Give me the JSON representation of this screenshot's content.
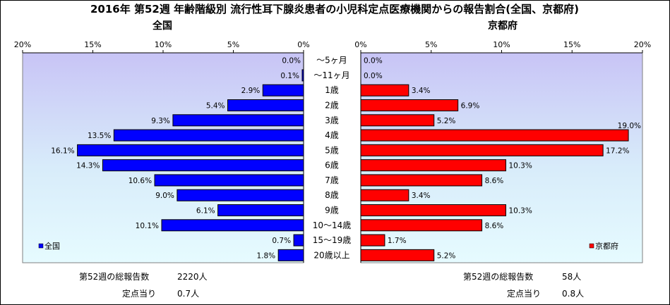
{
  "title": "2016年 第52週 年齢階級別 流行性耳下腺炎患者の小児科定点医療機関からの報告割合(全国、京都府)",
  "chart_data": [
    {
      "type": "bar",
      "orientation": "horizontal",
      "title": "全国",
      "direction": "right-to-left",
      "categories": [
        "～5ヶ月",
        "～11ヶ月",
        "1歳",
        "2歳",
        "3歳",
        "4歳",
        "5歳",
        "6歳",
        "7歳",
        "8歳",
        "9歳",
        "10～14歳",
        "15～19歳",
        "20歳以上"
      ],
      "series": [
        {
          "name": "全国",
          "color": "#0000ff",
          "values": [
            0.0,
            0.1,
            2.9,
            5.4,
            9.3,
            13.5,
            16.1,
            14.3,
            10.6,
            9.0,
            6.1,
            10.1,
            0.7,
            1.8
          ],
          "labels": [
            "0.0%",
            "0.1%",
            "2.9%",
            "5.4%",
            "9.3%",
            "13.5%",
            "16.1%",
            "14.3%",
            "10.6%",
            "9.0%",
            "6.1%",
            "10.1%",
            "0.7%",
            "1.8%"
          ]
        }
      ],
      "xlim": [
        0,
        20
      ],
      "ticks": [
        20,
        15,
        10,
        5,
        0
      ],
      "tick_labels": [
        "20%",
        "15%",
        "10%",
        "5%",
        "0%"
      ],
      "legend_position": "bottom-left",
      "grid": false,
      "background": "gradient lavender to light cyan"
    },
    {
      "type": "bar",
      "orientation": "horizontal",
      "title": "京都府",
      "direction": "left-to-right",
      "categories": [
        "～5ヶ月",
        "～11ヶ月",
        "1歳",
        "2歳",
        "3歳",
        "4歳",
        "5歳",
        "6歳",
        "7歳",
        "8歳",
        "9歳",
        "10～14歳",
        "15～19歳",
        "20歳以上"
      ],
      "series": [
        {
          "name": "京都府",
          "color": "#ff0000",
          "values": [
            0.0,
            0.0,
            3.4,
            6.9,
            5.2,
            19.0,
            17.2,
            10.3,
            8.6,
            3.4,
            10.3,
            8.6,
            1.7,
            5.2
          ],
          "labels": [
            "0.0%",
            "0.0%",
            "3.4%",
            "6.9%",
            "5.2%",
            "19.0%",
            "17.2%",
            "10.3%",
            "8.6%",
            "3.4%",
            "10.3%",
            "8.6%",
            "1.7%",
            "5.2%"
          ]
        }
      ],
      "xlim": [
        0,
        20
      ],
      "ticks": [
        0,
        5,
        10,
        15,
        20
      ],
      "tick_labels": [
        "0%",
        "5%",
        "10%",
        "15%",
        "20%"
      ],
      "legend_position": "bottom-right",
      "grid": false,
      "background": "gradient lavender to light cyan"
    }
  ],
  "footer": {
    "left": {
      "total_label": "第52週の総報告数",
      "total_value": "2220人",
      "per_site_label": "定点当り",
      "per_site_value": "0.7人"
    },
    "right": {
      "total_label": "第52週の総報告数",
      "total_value": "58人",
      "per_site_label": "定点当り",
      "per_site_value": "0.8人"
    }
  }
}
